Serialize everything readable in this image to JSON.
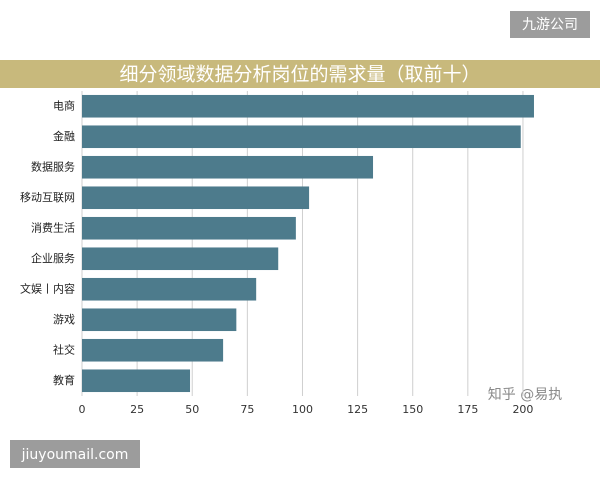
{
  "chart_data": {
    "type": "bar",
    "orientation": "horizontal",
    "title": "细分领域数据分析岗位的需求量（取前十）",
    "categories": [
      "电商",
      "金融",
      "数据服务",
      "移动互联网",
      "消费生活",
      "企业服务",
      "文娱丨内容",
      "游戏",
      "社交",
      "教育"
    ],
    "values": [
      205,
      199,
      132,
      103,
      97,
      89,
      79,
      70,
      64,
      49
    ],
    "color": "#4d7b8c",
    "xlim": [
      0,
      210
    ],
    "xticks": [
      0,
      25,
      50,
      75,
      100,
      125,
      150,
      175,
      200
    ],
    "grid": true,
    "annotations": [
      "九游公司",
      "知乎 @易执",
      "jiuyoumail.com"
    ]
  }
}
